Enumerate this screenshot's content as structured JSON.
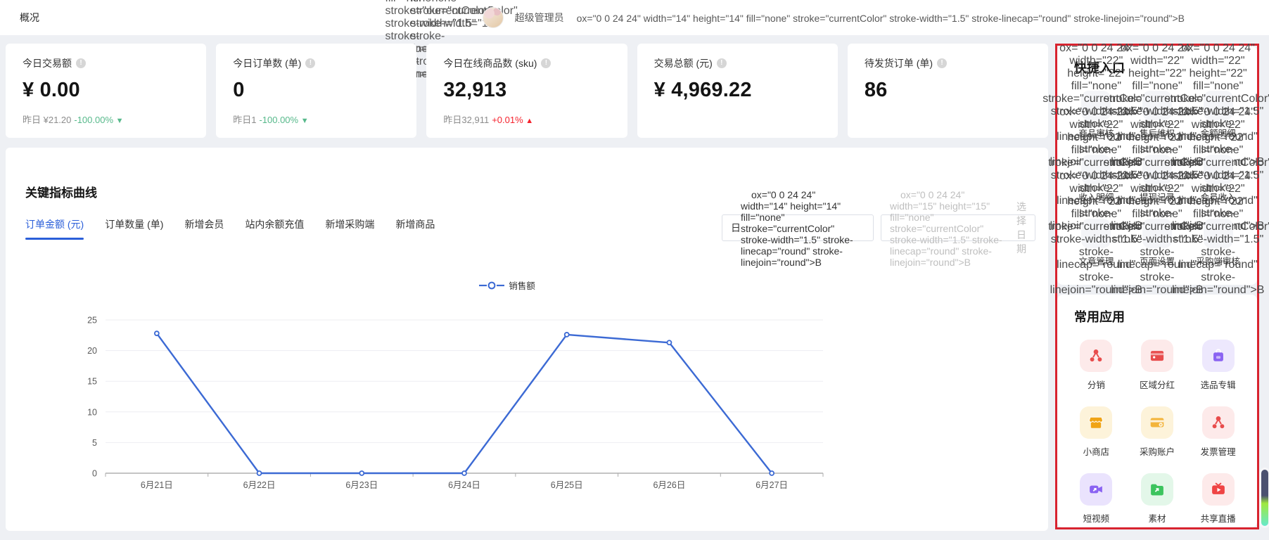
{
  "topbar": {
    "title": "概况",
    "user_name": "超级管理员"
  },
  "stats": [
    {
      "title": "今日交易额",
      "value": "¥ 0.00",
      "yesterday": "昨日 ¥21.20",
      "delta": "-100.00%",
      "trend": "down"
    },
    {
      "title": "今日订单数 (单)",
      "value": "0",
      "yesterday": "昨日1",
      "delta": "-100.00%",
      "trend": "down"
    },
    {
      "title": "今日在线商品数 (sku)",
      "value": "32,913",
      "yesterday": "昨日32,911",
      "delta": "+0.01%",
      "trend": "up"
    },
    {
      "title": "交易总额 (元)",
      "value": "¥ 4,969.22"
    },
    {
      "title": "待发货订单 (单)",
      "value": "86"
    }
  ],
  "chart_panel": {
    "title": "关键指标曲线",
    "tabs": [
      "订单金额 (元)",
      "订单数量 (单)",
      "新增会员",
      "站内余额充值",
      "新增采购端",
      "新增商品"
    ],
    "active_tab": 0,
    "period_select": "日",
    "date_placeholder": "选择日期"
  },
  "chart_data": {
    "type": "line",
    "legend": [
      "销售额"
    ],
    "legend_position": "top-center",
    "categories": [
      "6月21日",
      "6月22日",
      "6月23日",
      "6月24日",
      "6月25日",
      "6月26日",
      "6月27日"
    ],
    "series": [
      {
        "name": "销售额",
        "values": [
          22.8,
          0,
          0,
          0,
          22.6,
          21.3,
          0
        ],
        "color": "#3c6ad4"
      }
    ],
    "ylim": [
      0,
      25
    ],
    "yticks": [
      0,
      5,
      10,
      15,
      20,
      25
    ],
    "grid": true
  },
  "quick_entry": {
    "title": "快捷入口",
    "items": [
      {
        "label": "商品审核",
        "icon": "cube-icon"
      },
      {
        "label": "售后维权",
        "icon": "aftersale-yen-icon"
      },
      {
        "label": "余额明细",
        "icon": "balance-book-icon"
      },
      {
        "label": "收入明细",
        "icon": "income-doc-lock-icon"
      },
      {
        "label": "提现记录",
        "icon": "withdraw-box-icon"
      },
      {
        "label": "会员收入",
        "icon": "member-yen-icon"
      },
      {
        "label": "文章管理",
        "icon": "article-doc-icon"
      },
      {
        "label": "页面设置",
        "icon": "page-gear-icon"
      },
      {
        "label": "采购端审核",
        "icon": "purchase-audit-icon"
      }
    ]
  },
  "common_apps": {
    "title": "常用应用",
    "items": [
      {
        "label": "分销",
        "icon": "share-network-icon",
        "bg": "#fdeaea",
        "fg": "#e84c4c"
      },
      {
        "label": "区域分红",
        "icon": "wallet-icon",
        "bg": "#fdeaea",
        "fg": "#e84c4c"
      },
      {
        "label": "选品专辑",
        "icon": "bag-icon",
        "bg": "#ede8fd",
        "fg": "#8a63f2"
      },
      {
        "label": "小商店",
        "icon": "storefront-icon",
        "bg": "#fdf3da",
        "fg": "#f0a416"
      },
      {
        "label": "采购账户",
        "icon": "bank-card-icon",
        "bg": "#fdf3da",
        "fg": "#f3b43a"
      },
      {
        "label": "发票管理",
        "icon": "share-network-icon",
        "bg": "#fdeaea",
        "fg": "#e84c4c"
      },
      {
        "label": "短视频",
        "icon": "video-icon",
        "bg": "#eae3fd",
        "fg": "#8a63f2"
      },
      {
        "label": "素材",
        "icon": "folder-arrow-icon",
        "bg": "#e3f7e9",
        "fg": "#3cc45e"
      },
      {
        "label": "共享直播",
        "icon": "live-tv-icon",
        "bg": "#fdeaea",
        "fg": "#ef4444"
      }
    ]
  },
  "colors": {
    "accent_blue": "#2b5fd9",
    "line_blue": "#3c6ad4",
    "delta_green": "#57b98b",
    "delta_red": "#f5222d",
    "sidebar_highlight_red": "#d8232f",
    "page_background": "#eef0f4"
  }
}
